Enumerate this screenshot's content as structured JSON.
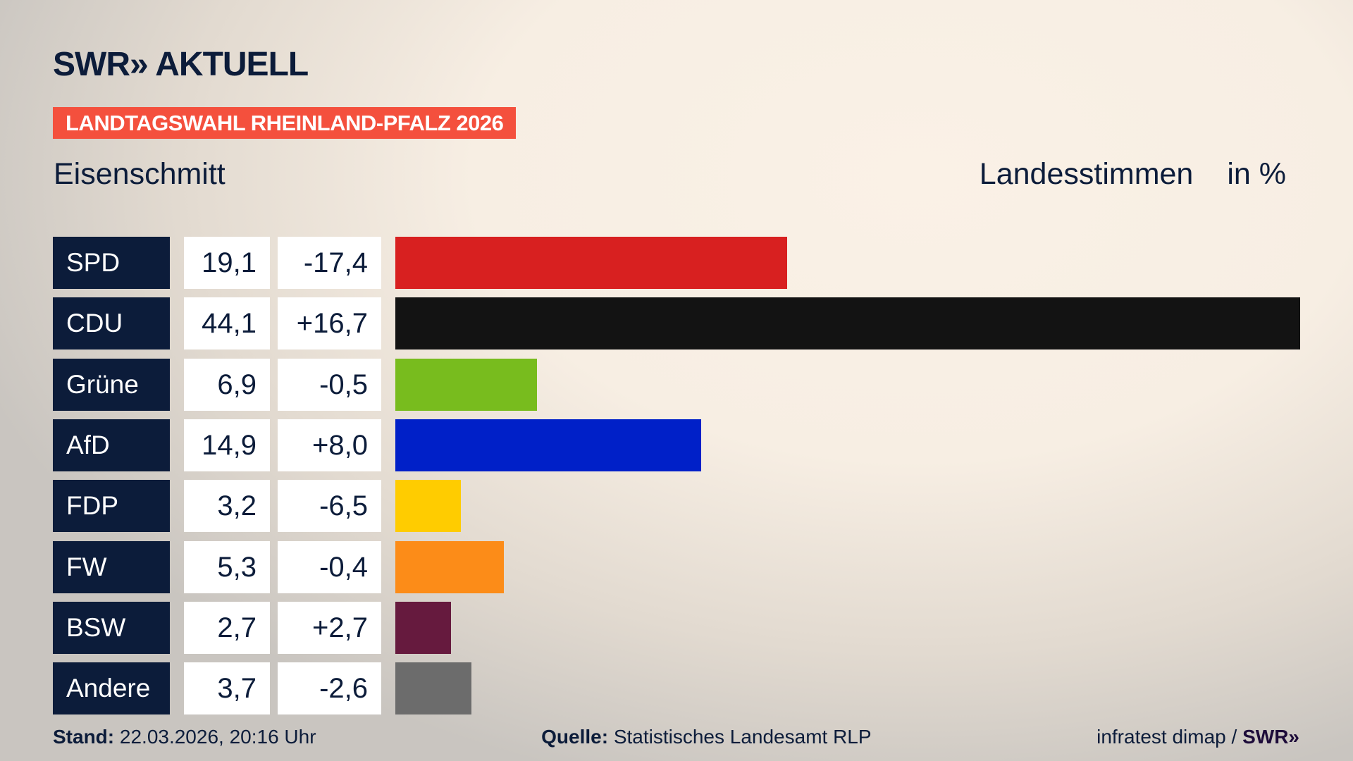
{
  "header": {
    "logo": "SWR» AKTUELL",
    "banner": "LANDTAGSWAHL RHEINLAND-PFALZ 2026",
    "region": "Eisenschmitt",
    "measure": "Landesstimmen",
    "unit": "in %"
  },
  "chart_data": {
    "type": "bar",
    "orientation": "horizontal",
    "categories": [
      "SPD",
      "CDU",
      "Grüne",
      "AfD",
      "FDP",
      "FW",
      "BSW",
      "Andere"
    ],
    "values": [
      19.1,
      44.1,
      6.9,
      14.9,
      3.2,
      5.3,
      2.7,
      3.7
    ],
    "value_labels": [
      "19,1",
      "44,1",
      "6,9",
      "14,9",
      "3,2",
      "5,3",
      "2,7",
      "3,7"
    ],
    "change_labels": [
      "-17,4",
      "+16,7",
      "-0,5",
      "+8,0",
      "-6,5",
      "-0,4",
      "+2,7",
      "-2,6"
    ],
    "changes": [
      -17.4,
      16.7,
      -0.5,
      8.0,
      -6.5,
      -0.4,
      2.7,
      -2.6
    ],
    "colors": [
      "#d82020",
      "#131313",
      "#78bc1e",
      "#0020c8",
      "#ffcc00",
      "#fc8c18",
      "#661a3e",
      "#6c6c6c"
    ],
    "xlim": [
      0,
      44.1
    ],
    "grid": false
  },
  "footer": {
    "stand_label": "Stand:",
    "stand_value": "22.03.2026, 20:16 Uhr",
    "source_label": "Quelle:",
    "source_value": "Statistisches Landesamt RLP",
    "credit": "infratest dimap /",
    "credit_logo": "SWR»"
  }
}
